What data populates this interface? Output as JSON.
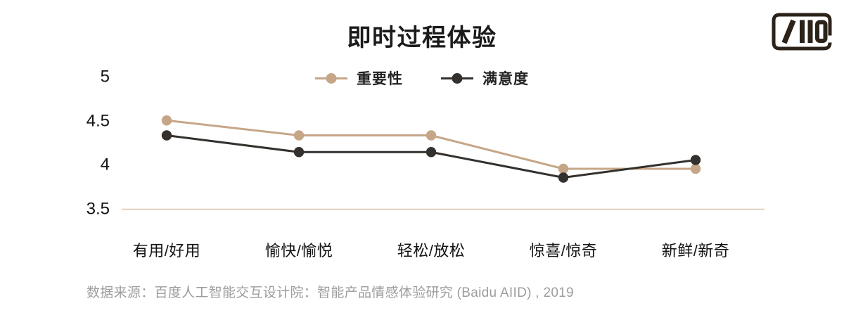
{
  "header": {
    "title": "即时过程体验"
  },
  "chart_data": {
    "type": "line",
    "title": "即时过程体验",
    "categories": [
      "有用/好用",
      "愉快/愉悦",
      "轻松/放松",
      "惊喜/惊奇",
      "新鲜/新奇"
    ],
    "series": [
      {
        "name": "重要性",
        "color": "#c6a688",
        "values": [
          4.51,
          4.34,
          4.34,
          3.96,
          3.96
        ]
      },
      {
        "name": "满意度",
        "color": "#33302d",
        "values": [
          4.34,
          4.15,
          4.15,
          3.86,
          4.06
        ]
      }
    ],
    "y_ticks": [
      "5",
      "4.5",
      "4",
      "3.5"
    ],
    "ylim": [
      3.5,
      5
    ],
    "xlabel": "",
    "ylabel": "",
    "grid": "baseline-only",
    "legend_position": "top-center"
  },
  "source": {
    "text": "数据来源：百度人工智能交互设计院：智能产品情感体验研究 (Baidu AIID) , 2019"
  },
  "logo": {
    "icon": "aiid-logo"
  },
  "colors": {
    "importance_series": "#c6a688",
    "satisfaction_series": "#33302d",
    "baseline": "#d8c5b0",
    "title_text": "#1b1b1b",
    "axis_text": "#141414",
    "source_text": "#9d9d9d",
    "logo_mark": "#2b221a"
  }
}
